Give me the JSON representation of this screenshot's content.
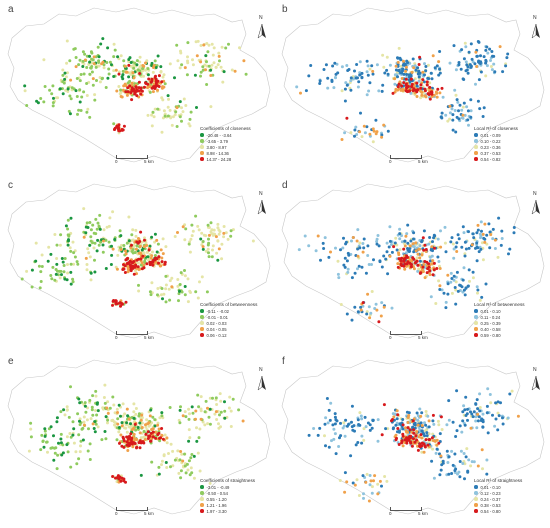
{
  "panels": [
    {
      "label": "a",
      "legend_title": "Coefficients of closeness",
      "scheme": "diverging",
      "classes": [
        {
          "range": "-20.48 - -3.64",
          "color": "#1a9641"
        },
        {
          "range": "-3.65 - 3.79",
          "color": "#8fcb5e"
        },
        {
          "range": "3.80 - 8.97",
          "color": "#e5e5a6"
        },
        {
          "range": "8.98 - 14.36",
          "color": "#f0a14a"
        },
        {
          "range": "14.37 - 24.28",
          "color": "#d7191c"
        }
      ]
    },
    {
      "label": "b",
      "legend_title": "Local R² of closeness",
      "scheme": "r2",
      "classes": [
        {
          "range": "0.01 - 0.09",
          "color": "#2c7bb6"
        },
        {
          "range": "0.10 - 0.22",
          "color": "#8fc3dd"
        },
        {
          "range": "0.23 - 0.36",
          "color": "#e5e5a6"
        },
        {
          "range": "0.37 - 0.53",
          "color": "#f0a14a"
        },
        {
          "range": "0.54 - 0.82",
          "color": "#d7191c"
        }
      ]
    },
    {
      "label": "c",
      "legend_title": "Coefficients of betweenness",
      "scheme": "diverging",
      "classes": [
        {
          "range": "-0.11 - -0.02",
          "color": "#1a9641"
        },
        {
          "range": "-0.01 - 0.01",
          "color": "#8fcb5e"
        },
        {
          "range": "0.02 - 0.03",
          "color": "#e5e5a6"
        },
        {
          "range": "0.04 - 0.05",
          "color": "#f0a14a"
        },
        {
          "range": "0.06 - 0.12",
          "color": "#d7191c"
        }
      ]
    },
    {
      "label": "d",
      "legend_title": "Local R² of betweenness",
      "scheme": "r2",
      "classes": [
        {
          "range": "0.01 - 0.10",
          "color": "#2c7bb6"
        },
        {
          "range": "0.11 - 0.24",
          "color": "#8fc3dd"
        },
        {
          "range": "0.25 - 0.39",
          "color": "#e5e5a6"
        },
        {
          "range": "0.40 - 0.58",
          "color": "#f0a14a"
        },
        {
          "range": "0.59 - 0.80",
          "color": "#d7191c"
        }
      ]
    },
    {
      "label": "e",
      "legend_title": "Coefficients of straightness",
      "scheme": "diverging",
      "classes": [
        {
          "range": "-3.01 - -0.49",
          "color": "#1a9641"
        },
        {
          "range": "-0.50 - 0.54",
          "color": "#8fcb5e"
        },
        {
          "range": "0.55 - 1.20",
          "color": "#e5e5a6"
        },
        {
          "range": "1.21 - 1.96",
          "color": "#f0a14a"
        },
        {
          "range": "1.97 - 3.30",
          "color": "#d7191c"
        }
      ]
    },
    {
      "label": "f",
      "legend_title": "Local R² of straightness",
      "scheme": "r2",
      "classes": [
        {
          "range": "0.01 - 0.10",
          "color": "#2c7bb6"
        },
        {
          "range": "0.12 - 0.23",
          "color": "#8fc3dd"
        },
        {
          "range": "0.24 - 0.37",
          "color": "#e5e5a6"
        },
        {
          "range": "0.38 - 0.53",
          "color": "#f0a14a"
        },
        {
          "range": "0.54 - 0.80",
          "color": "#d7191c"
        }
      ]
    }
  ],
  "scale_zero": "0",
  "scale_distance": "5 km",
  "north_label": "N",
  "boundary_color": "#c8c8c8"
}
